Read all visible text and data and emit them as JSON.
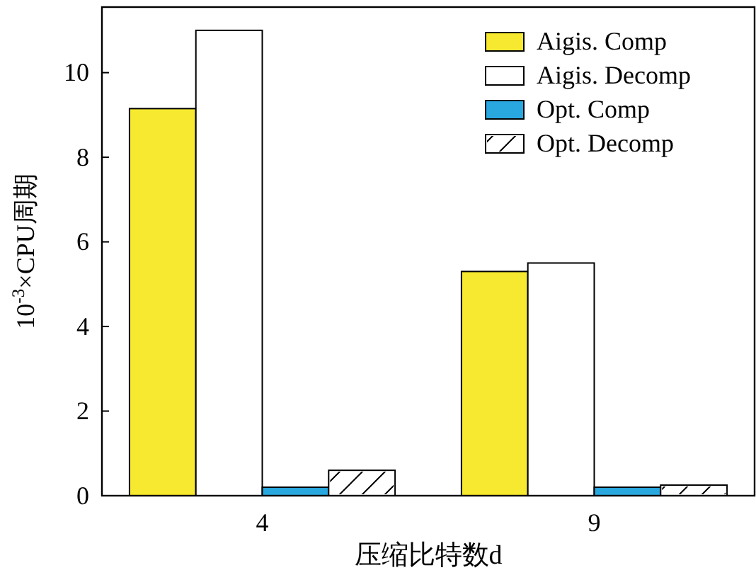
{
  "chart_data": {
    "type": "bar",
    "xlabel": "压缩比特数d",
    "ylabel": "10$^{-3}$×CPU周期",
    "categories": [
      "4",
      "9"
    ],
    "series": [
      {
        "name": "Aigis. Comp",
        "color": "#f7e92f",
        "values": [
          9.15,
          5.3
        ]
      },
      {
        "name": "Aigis. Decomp",
        "color": "#ffffff",
        "values": [
          11.0,
          5.5
        ]
      },
      {
        "name": "Opt. Comp",
        "color": "#29a8e0",
        "values": [
          0.2,
          0.2
        ]
      },
      {
        "name": "Opt. Decomp",
        "color": "#ffffff",
        "values": [
          0.6,
          0.25
        ]
      }
    ],
    "ylim": [
      0,
      11.55
    ],
    "yticks": [
      0,
      2,
      4,
      6,
      8,
      10
    ],
    "legend": "top right"
  }
}
